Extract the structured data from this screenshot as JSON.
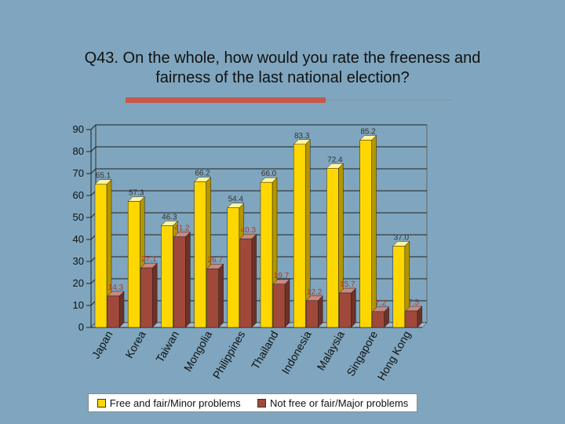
{
  "title_line1": "Q43. On the whole, how would you rate the freeness and",
  "title_line2": "fairness of the last national election?",
  "colors": {
    "accent": "#c8574a",
    "series1": "#ffd700",
    "series2": "#a0493b",
    "background": "#7fa6be"
  },
  "chart_data": {
    "type": "bar",
    "title": "Q43. On the whole, how would you rate the freeness and fairness of the last national election?",
    "xlabel": "",
    "ylabel": "",
    "ylim": [
      0,
      90
    ],
    "yticks": [
      0,
      10,
      20,
      30,
      40,
      50,
      60,
      70,
      80,
      90
    ],
    "grid": true,
    "legend_position": "bottom",
    "categories": [
      "Japan",
      "Korea",
      "Taiwan",
      "Mongolia",
      "Philippines",
      "Thailand",
      "Indonesia",
      "Malaysia",
      "Singapore",
      "Hong Kong"
    ],
    "series": [
      {
        "name": "Free and fair/Minor problems",
        "values": [
          65.1,
          57.3,
          46.3,
          66.2,
          54.4,
          66.0,
          83.3,
          72.4,
          85.2,
          37.0
        ],
        "labels": [
          "65.1",
          "57.3",
          "46.3",
          "66.2",
          "54.4",
          "66.0",
          "83.3",
          "72.4",
          "85.2",
          "37.0"
        ]
      },
      {
        "name": "Not free or fair/Major problems",
        "values": [
          14.3,
          27.1,
          41.2,
          26.7,
          40.3,
          19.7,
          12.2,
          15.7,
          7.2,
          7.5
        ],
        "labels": [
          "14.3",
          "27.1",
          "41.2",
          "26.7",
          "40.3",
          "19.7",
          "12.2",
          "15.7",
          "7.2",
          "7.5"
        ]
      }
    ]
  }
}
